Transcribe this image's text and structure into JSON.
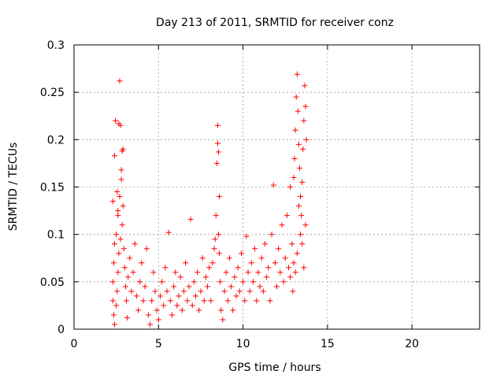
{
  "chart_data": {
    "type": "scatter",
    "title": "Day 213 of 2011, SRMTID for receiver conz",
    "xlabel": "GPS time / hours",
    "ylabel": "SRMTID / TECUs",
    "xlim": [
      0,
      24
    ],
    "ylim": [
      0,
      0.3
    ],
    "xticks": [
      "0",
      "5",
      "10",
      "15",
      "20"
    ],
    "yticks": [
      "0",
      "0.05",
      "0.1",
      "0.15",
      "0.2",
      "0.25",
      "0.3"
    ],
    "xtick_values": [
      0,
      5,
      10,
      15,
      20
    ],
    "ytick_values": [
      0,
      0.05,
      0.1,
      0.15,
      0.2,
      0.25,
      0.3
    ],
    "grid": true,
    "marker": "+",
    "series": [
      {
        "name": "SRMTID",
        "color": "#ff0000",
        "points": [
          [
            2.3,
            0.135
          ],
          [
            2.4,
            0.183
          ],
          [
            2.45,
            0.22
          ],
          [
            2.55,
            0.145
          ],
          [
            2.6,
            0.125
          ],
          [
            2.65,
            0.217
          ],
          [
            2.7,
            0.262
          ],
          [
            2.75,
            0.215
          ],
          [
            2.8,
            0.168
          ],
          [
            2.85,
            0.188
          ],
          [
            2.9,
            0.19
          ],
          [
            2.8,
            0.158
          ],
          [
            2.7,
            0.14
          ],
          [
            2.6,
            0.12
          ],
          [
            2.5,
            0.1
          ],
          [
            2.4,
            0.09
          ],
          [
            2.35,
            0.07
          ],
          [
            2.3,
            0.05
          ],
          [
            2.3,
            0.03
          ],
          [
            2.35,
            0.015
          ],
          [
            2.4,
            0.005
          ],
          [
            2.5,
            0.025
          ],
          [
            2.55,
            0.04
          ],
          [
            2.6,
            0.06
          ],
          [
            2.65,
            0.08
          ],
          [
            2.75,
            0.095
          ],
          [
            2.85,
            0.11
          ],
          [
            2.9,
            0.13
          ],
          [
            2.95,
            0.085
          ],
          [
            3.0,
            0.065
          ],
          [
            3.05,
            0.045
          ],
          [
            3.1,
            0.03
          ],
          [
            3.15,
            0.012
          ],
          [
            3.2,
            0.055
          ],
          [
            3.3,
            0.075
          ],
          [
            3.4,
            0.04
          ],
          [
            3.5,
            0.06
          ],
          [
            3.6,
            0.09
          ],
          [
            3.7,
            0.035
          ],
          [
            3.8,
            0.02
          ],
          [
            3.9,
            0.05
          ],
          [
            4.0,
            0.07
          ],
          [
            4.1,
            0.03
          ],
          [
            4.2,
            0.045
          ],
          [
            4.3,
            0.085
          ],
          [
            4.4,
            0.015
          ],
          [
            4.5,
            0.005
          ],
          [
            4.6,
            0.03
          ],
          [
            4.7,
            0.06
          ],
          [
            4.8,
            0.04
          ],
          [
            4.9,
            0.02
          ],
          [
            5.0,
            0.01
          ],
          [
            5.1,
            0.035
          ],
          [
            5.2,
            0.05
          ],
          [
            5.3,
            0.025
          ],
          [
            5.4,
            0.065
          ],
          [
            5.5,
            0.04
          ],
          [
            5.6,
            0.102
          ],
          [
            5.7,
            0.03
          ],
          [
            5.8,
            0.015
          ],
          [
            5.9,
            0.045
          ],
          [
            6.0,
            0.06
          ],
          [
            6.1,
            0.025
          ],
          [
            6.2,
            0.035
          ],
          [
            6.3,
            0.055
          ],
          [
            6.4,
            0.02
          ],
          [
            6.5,
            0.04
          ],
          [
            6.6,
            0.07
          ],
          [
            6.7,
            0.03
          ],
          [
            6.8,
            0.045
          ],
          [
            6.9,
            0.116
          ],
          [
            7.0,
            0.025
          ],
          [
            7.1,
            0.05
          ],
          [
            7.2,
            0.035
          ],
          [
            7.3,
            0.06
          ],
          [
            7.4,
            0.02
          ],
          [
            7.5,
            0.04
          ],
          [
            7.6,
            0.075
          ],
          [
            7.7,
            0.03
          ],
          [
            7.8,
            0.055
          ],
          [
            7.9,
            0.045
          ],
          [
            8.0,
            0.065
          ],
          [
            8.1,
            0.03
          ],
          [
            8.2,
            0.07
          ],
          [
            8.3,
            0.085
          ],
          [
            8.35,
            0.095
          ],
          [
            8.4,
            0.12
          ],
          [
            8.45,
            0.175
          ],
          [
            8.5,
            0.196
          ],
          [
            8.5,
            0.215
          ],
          [
            8.55,
            0.187
          ],
          [
            8.6,
            0.14
          ],
          [
            8.55,
            0.1
          ],
          [
            8.6,
            0.08
          ],
          [
            8.65,
            0.05
          ],
          [
            8.7,
            0.02
          ],
          [
            8.8,
            0.01
          ],
          [
            8.9,
            0.04
          ],
          [
            9.0,
            0.06
          ],
          [
            9.1,
            0.03
          ],
          [
            9.2,
            0.075
          ],
          [
            9.3,
            0.045
          ],
          [
            9.4,
            0.02
          ],
          [
            9.5,
            0.055
          ],
          [
            9.6,
            0.035
          ],
          [
            9.7,
            0.065
          ],
          [
            9.8,
            0.04
          ],
          [
            9.9,
            0.08
          ],
          [
            10.0,
            0.05
          ],
          [
            10.1,
            0.03
          ],
          [
            10.2,
            0.098
          ],
          [
            10.3,
            0.06
          ],
          [
            10.4,
            0.04
          ],
          [
            10.5,
            0.07
          ],
          [
            10.6,
            0.05
          ],
          [
            10.7,
            0.085
          ],
          [
            10.8,
            0.03
          ],
          [
            10.9,
            0.06
          ],
          [
            11.0,
            0.045
          ],
          [
            11.1,
            0.075
          ],
          [
            11.2,
            0.04
          ],
          [
            11.3,
            0.09
          ],
          [
            11.4,
            0.055
          ],
          [
            11.5,
            0.065
          ],
          [
            11.6,
            0.03
          ],
          [
            11.7,
            0.1
          ],
          [
            11.8,
            0.152
          ],
          [
            11.9,
            0.07
          ],
          [
            12.0,
            0.045
          ],
          [
            12.1,
            0.085
          ],
          [
            12.2,
            0.06
          ],
          [
            12.3,
            0.11
          ],
          [
            12.4,
            0.05
          ],
          [
            12.5,
            0.075
          ],
          [
            12.6,
            0.12
          ],
          [
            12.7,
            0.065
          ],
          [
            12.8,
            0.15
          ],
          [
            12.9,
            0.09
          ],
          [
            13.0,
            0.16
          ],
          [
            13.05,
            0.18
          ],
          [
            13.1,
            0.21
          ],
          [
            13.15,
            0.245
          ],
          [
            13.2,
            0.269
          ],
          [
            13.25,
            0.23
          ],
          [
            13.3,
            0.195
          ],
          [
            13.35,
            0.17
          ],
          [
            13.4,
            0.14
          ],
          [
            13.45,
            0.12
          ],
          [
            13.5,
            0.155
          ],
          [
            13.55,
            0.19
          ],
          [
            13.6,
            0.22
          ],
          [
            13.65,
            0.257
          ],
          [
            13.7,
            0.235
          ],
          [
            13.75,
            0.2
          ],
          [
            13.7,
            0.11
          ],
          [
            13.6,
            0.065
          ],
          [
            13.5,
            0.09
          ],
          [
            13.4,
            0.1
          ],
          [
            13.3,
            0.13
          ],
          [
            13.2,
            0.08
          ],
          [
            13.1,
            0.06
          ],
          [
            13.0,
            0.07
          ],
          [
            12.95,
            0.04
          ],
          [
            12.8,
            0.055
          ]
        ]
      }
    ]
  }
}
